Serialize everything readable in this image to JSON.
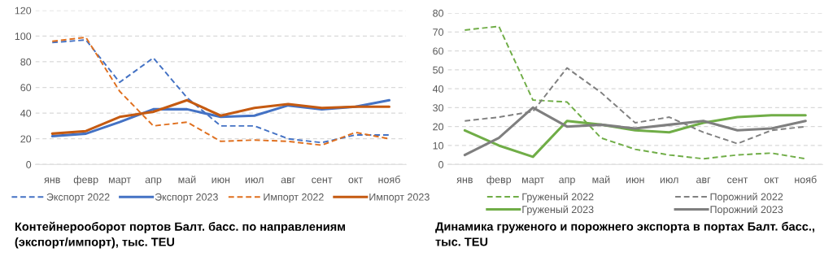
{
  "chart_data": [
    {
      "type": "line",
      "title": "Контейнерооборот портов Балт. басс. по направлениям (экспорт/импорт), тыс. TEU",
      "categories": [
        "янв",
        "февр",
        "март",
        "апр",
        "май",
        "июн",
        "июл",
        "авг",
        "сент",
        "окт",
        "нояб"
      ],
      "ylim": [
        0,
        120
      ],
      "yticks": [
        0,
        20,
        40,
        60,
        80,
        100,
        120
      ],
      "grid": "y",
      "legend": "bottom",
      "marker": "none",
      "series": [
        {
          "name": "Экспорт 2022",
          "color": "#4472c4",
          "line_style": "dashed",
          "values": [
            95,
            97,
            64,
            83,
            52,
            30,
            30,
            20,
            17,
            23,
            23
          ]
        },
        {
          "name": "Экспорт 2023",
          "color": "#4472c4",
          "line_style": "solid",
          "values": [
            22,
            24,
            33,
            43,
            43,
            37,
            38,
            46,
            43,
            45,
            50
          ]
        },
        {
          "name": "Импорт 2022",
          "color": "#e0701f",
          "line_style": "dashed",
          "values": [
            96,
            99,
            57,
            30,
            33,
            18,
            19,
            18,
            15,
            25,
            20
          ]
        },
        {
          "name": "Импорт 2023",
          "color": "#c55a11",
          "line_style": "solid",
          "values": [
            24,
            26,
            37,
            41,
            50,
            38,
            44,
            47,
            44,
            45,
            45
          ]
        }
      ]
    },
    {
      "type": "line",
      "title": "Динамика груженого и порожнего экспорта в портах Балт. басс., тыс. TEU",
      "categories": [
        "янв",
        "февр",
        "март",
        "апр",
        "май",
        "июн",
        "июл",
        "авг",
        "сент",
        "окт",
        "нояб"
      ],
      "ylim": [
        0,
        80
      ],
      "yticks": [
        0,
        10,
        20,
        30,
        40,
        50,
        60,
        70,
        80
      ],
      "grid": "y",
      "legend": "bottom",
      "marker": "none",
      "series": [
        {
          "name": "Груженый 2022",
          "color": "#70ad47",
          "line_style": "dashed",
          "values": [
            71,
            73,
            34,
            33,
            14,
            8,
            5,
            3,
            5,
            6,
            3
          ]
        },
        {
          "name": "Груженый 2023",
          "color": "#70ad47",
          "line_style": "solid",
          "values": [
            18,
            10,
            4,
            23,
            21,
            18,
            17,
            22,
            25,
            26,
            26
          ]
        },
        {
          "name": "Порожний 2022",
          "color": "#808080",
          "line_style": "dashed",
          "values": [
            23,
            25,
            28,
            51,
            38,
            22,
            25,
            17,
            11,
            18,
            20
          ]
        },
        {
          "name": "Порожний 2023",
          "color": "#7f7f7f",
          "line_style": "solid",
          "values": [
            5,
            14,
            30,
            20,
            21,
            19,
            21,
            23,
            18,
            19,
            23
          ]
        }
      ]
    }
  ]
}
